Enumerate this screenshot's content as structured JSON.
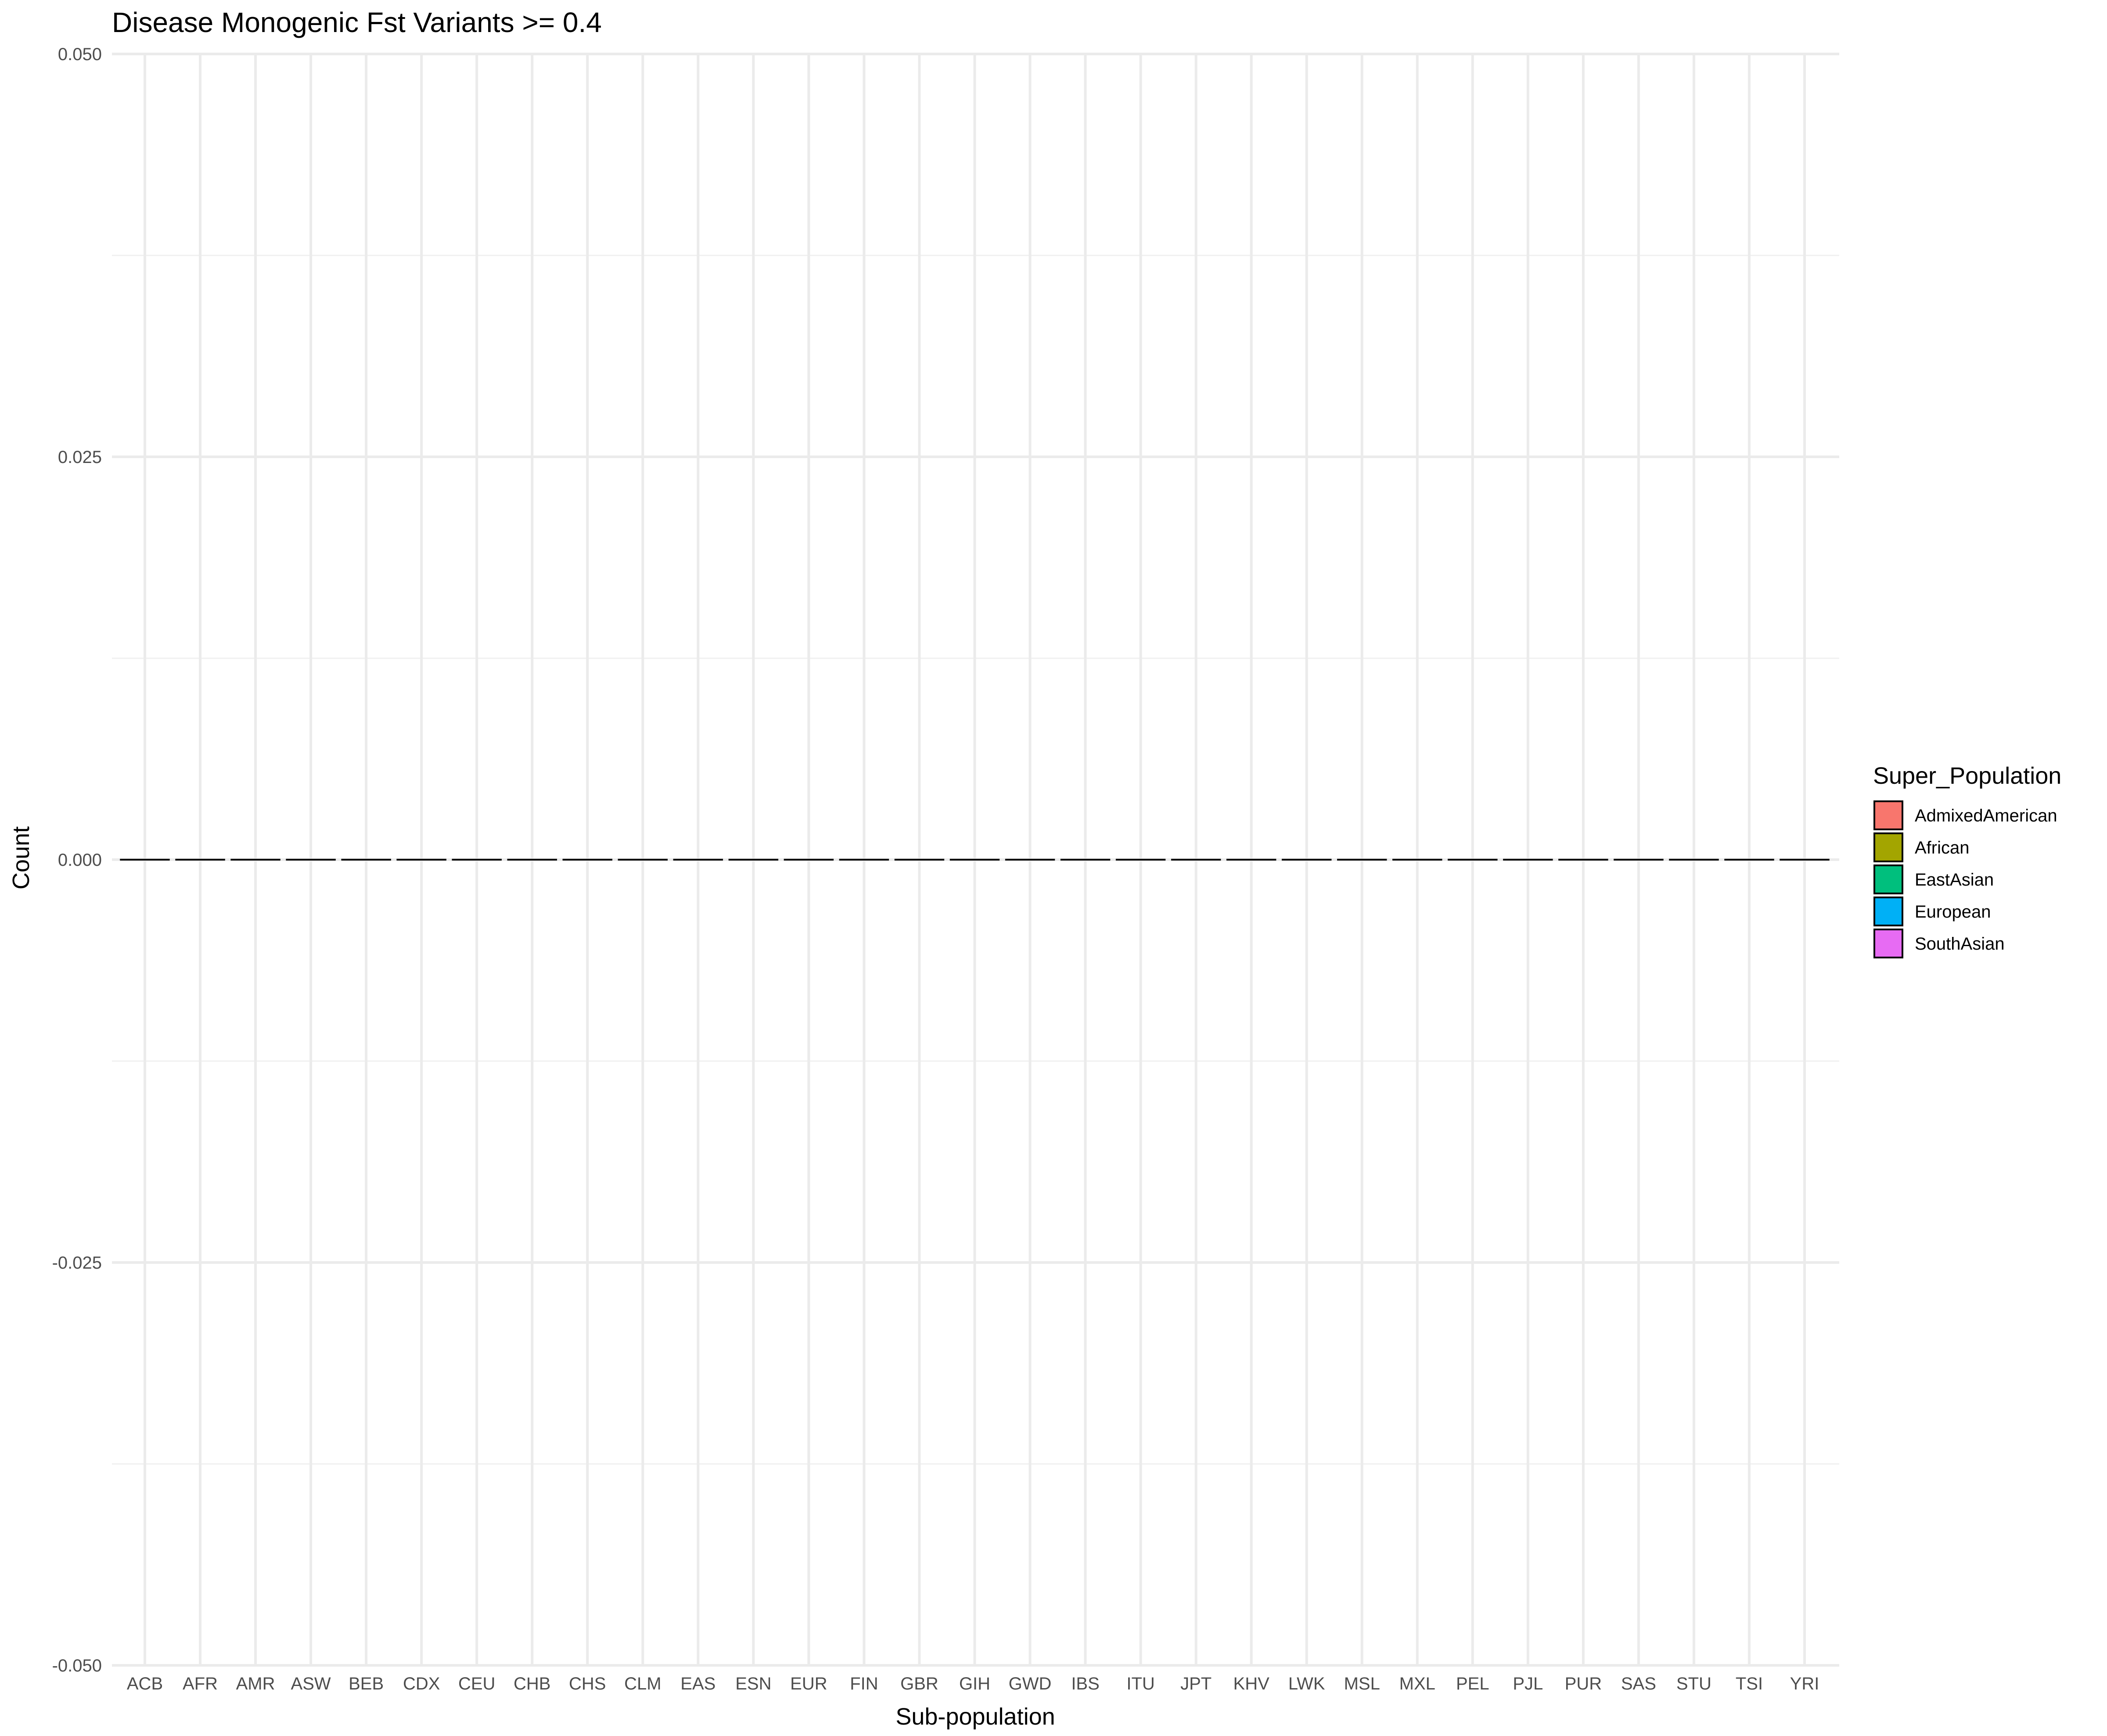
{
  "chart_data": {
    "type": "bar",
    "title": "Disease Monogenic Fst Variants >= 0.4",
    "xlabel": "Sub-population",
    "ylabel": "Count",
    "ylim": [
      -0.05,
      0.05
    ],
    "y_ticks": [
      "-0.050",
      "-0.025",
      "0.000",
      "0.025",
      "0.050"
    ],
    "y_tick_values": [
      -0.05,
      -0.025,
      0,
      0.025,
      0.05
    ],
    "grid": true,
    "categories": [
      "ACB",
      "AFR",
      "AMR",
      "ASW",
      "BEB",
      "CDX",
      "CEU",
      "CHB",
      "CHS",
      "CLM",
      "EAS",
      "ESN",
      "EUR",
      "FIN",
      "GBR",
      "GIH",
      "GWD",
      "IBS",
      "ITU",
      "JPT",
      "KHV",
      "LWK",
      "MSL",
      "MXL",
      "PEL",
      "PJL",
      "PUR",
      "SAS",
      "STU",
      "TSI",
      "YRI"
    ],
    "values": [
      0,
      0,
      0,
      0,
      0,
      0,
      0,
      0,
      0,
      0,
      0,
      0,
      0,
      0,
      0,
      0,
      0,
      0,
      0,
      0,
      0,
      0,
      0,
      0,
      0,
      0,
      0,
      0,
      0,
      0,
      0
    ],
    "legend": {
      "title": "Super_Population",
      "placement": "right",
      "items": [
        {
          "label": "AdmixedAmerican",
          "color": "#F8766D"
        },
        {
          "label": "African",
          "color": "#A3A500"
        },
        {
          "label": "EastAsian",
          "color": "#00BF7D"
        },
        {
          "label": "European",
          "color": "#00B0F6"
        },
        {
          "label": "SouthAsian",
          "color": "#E76BF3"
        }
      ]
    }
  }
}
